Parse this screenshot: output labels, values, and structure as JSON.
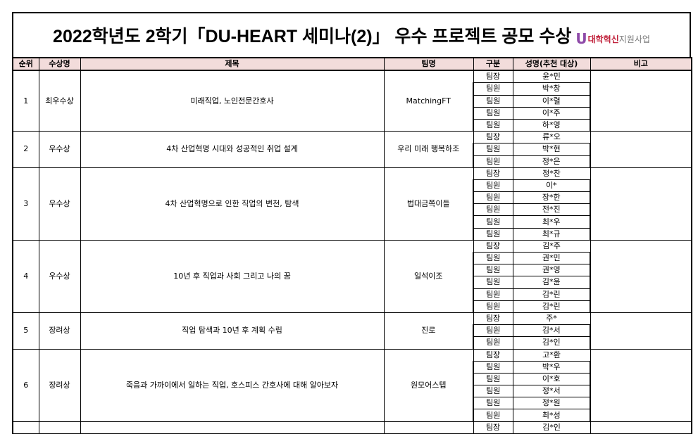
{
  "title": "2022학년도 2학기「DU-HEART 세미나(2)」 우수 프로젝트 공모 수상",
  "logo": {
    "mark": "U",
    "text_red": "대학혁신",
    "text_gray": "지원사업"
  },
  "headers": [
    "순위",
    "수상명",
    "제목",
    "팀명",
    "구분",
    "성명(추천 대상)",
    "비고"
  ],
  "groups": [
    {
      "rank": "1",
      "award": "최우수상",
      "title": "미래직업, 노인전문간호사",
      "team": "MatchingFT",
      "note": "",
      "members": [
        [
          "팀장",
          "윤*민"
        ],
        [
          "팀원",
          "박*창"
        ],
        [
          "팀원",
          "이*렬"
        ],
        [
          "팀원",
          "이*주"
        ],
        [
          "팀원",
          "하*영"
        ]
      ]
    },
    {
      "rank": "2",
      "award": "우수상",
      "title": "4차 산업혁명 시대와 성공적인 취업 설계",
      "team": "우리 미래 행복하조",
      "note": "",
      "members": [
        [
          "팀장",
          "류*오"
        ],
        [
          "팀원",
          "박*현"
        ],
        [
          "팀원",
          "정*은"
        ]
      ]
    },
    {
      "rank": "3",
      "award": "우수상",
      "title": "4차 산업혁명으로 인한 직업의 변천, 탐색",
      "team": "법대금쪽이들",
      "note": "",
      "members": [
        [
          "팀장",
          "정*찬"
        ],
        [
          "팀원",
          "이*"
        ],
        [
          "팀원",
          "장*한"
        ],
        [
          "팀원",
          "전*진"
        ],
        [
          "팀원",
          "최*우"
        ],
        [
          "팀원",
          "최*규"
        ]
      ]
    },
    {
      "rank": "4",
      "award": "우수상",
      "title": "10년 후 직업과 사회 그리고 나의 꿈",
      "team": "일석이조",
      "note": "",
      "members": [
        [
          "팀장",
          "김*주"
        ],
        [
          "팀원",
          "권*민"
        ],
        [
          "팀원",
          "권*영"
        ],
        [
          "팀원",
          "김*윤"
        ],
        [
          "팀원",
          "김*린"
        ],
        [
          "팀원",
          "김*린"
        ]
      ]
    },
    {
      "rank": "5",
      "award": "장려상",
      "title": "직업 탐색과 10년 후 계획 수립",
      "team": "진로",
      "note": "",
      "members": [
        [
          "팀장",
          "주*"
        ],
        [
          "팀원",
          "김*서"
        ],
        [
          "팀원",
          "김*인"
        ]
      ]
    },
    {
      "rank": "6",
      "award": "장려상",
      "title": "죽음과 가까이에서 일하는 직업, 호스피스 간호사에 대해 알아보자",
      "team": "원모어스텝",
      "note": "",
      "members": [
        [
          "팀장",
          "고*환"
        ],
        [
          "팀원",
          "박*우"
        ],
        [
          "팀원",
          "이*호"
        ],
        [
          "팀원",
          "정*서"
        ],
        [
          "팀원",
          "정*원"
        ],
        [
          "팀원",
          "최*성"
        ]
      ]
    },
    {
      "rank": "",
      "award": "",
      "title": "",
      "team": "",
      "note": "",
      "members": [
        [
          "팀장",
          "김*인"
        ]
      ]
    }
  ]
}
